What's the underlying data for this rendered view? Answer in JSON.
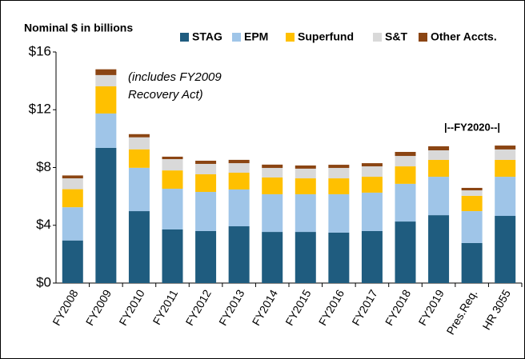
{
  "chart_data": {
    "type": "stacked_bar",
    "title": "Nominal $ in billions",
    "categories": [
      "FY2008",
      "FY2009",
      "FY2010",
      "FY2011",
      "FY2012",
      "FY2013",
      "FY2014",
      "FY2015",
      "FY2016",
      "FY2017",
      "FY2018",
      "FY2019",
      "Pres.Req.",
      "HR 3055"
    ],
    "series": [
      {
        "name": "STAG",
        "color": "#1f5c7f",
        "values": [
          2.95,
          9.36,
          4.98,
          3.71,
          3.6,
          3.93,
          3.54,
          3.54,
          3.49,
          3.6,
          4.26,
          4.7,
          2.77,
          4.65
        ]
      },
      {
        "name": "EPM",
        "color": "#9fc5e8",
        "values": [
          2.3,
          2.38,
          3.0,
          2.82,
          2.71,
          2.55,
          2.61,
          2.61,
          2.66,
          2.66,
          2.61,
          2.66,
          2.21,
          2.71
        ]
      },
      {
        "name": "Superfund",
        "color": "#ffc000",
        "values": [
          1.25,
          1.88,
          1.28,
          1.27,
          1.22,
          1.16,
          1.16,
          1.1,
          1.1,
          1.1,
          1.21,
          1.17,
          1.06,
          1.17
        ]
      },
      {
        "name": "S&T",
        "color": "#d9d9d9",
        "values": [
          0.75,
          0.78,
          0.83,
          0.78,
          0.72,
          0.66,
          0.66,
          0.67,
          0.72,
          0.72,
          0.72,
          0.66,
          0.38,
          0.72
        ]
      },
      {
        "name": "Other Accts.",
        "color": "#8b4513",
        "values": [
          0.2,
          0.4,
          0.22,
          0.17,
          0.22,
          0.23,
          0.23,
          0.22,
          0.22,
          0.22,
          0.28,
          0.28,
          0.17,
          0.27
        ]
      }
    ],
    "ylim": [
      0,
      16
    ],
    "yticks": [
      {
        "value": 0,
        "label": "$0"
      },
      {
        "value": 4,
        "label": "$4"
      },
      {
        "value": 8,
        "label": "$8"
      },
      {
        "value": 12,
        "label": "$12"
      },
      {
        "value": 16,
        "label": "$16"
      }
    ],
    "annotations": [
      "(includes FY2009",
      "Recovery Act)",
      "|--FY2020--|"
    ]
  }
}
